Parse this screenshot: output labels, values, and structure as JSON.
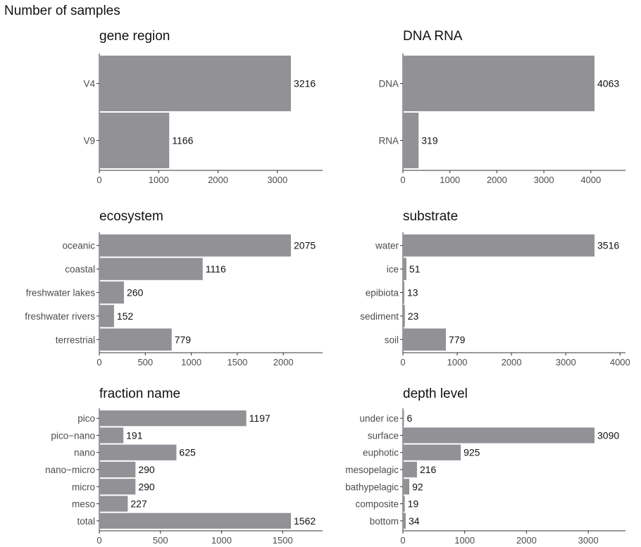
{
  "page_title": "Number of samples",
  "colors": {
    "bar": "#929296",
    "axis": "#333333",
    "label": "#4d4d4d",
    "text": "#111111"
  },
  "chart_data": [
    {
      "type": "bar",
      "orientation": "horizontal",
      "title": "gene region",
      "categories": [
        "V4",
        "V9"
      ],
      "values": [
        3216,
        1166
      ],
      "xticks": [
        0,
        1000,
        2000,
        3000
      ],
      "xlim": [
        0,
        3216
      ]
    },
    {
      "type": "bar",
      "orientation": "horizontal",
      "title": "DNA RNA",
      "categories": [
        "DNA",
        "RNA"
      ],
      "values": [
        4063,
        319
      ],
      "xticks": [
        0,
        1000,
        2000,
        3000,
        4000
      ],
      "xlim": [
        0,
        4063
      ]
    },
    {
      "type": "bar",
      "orientation": "horizontal",
      "title": "ecosystem",
      "categories": [
        "oceanic",
        "coastal",
        "freshwater lakes",
        "freshwater rivers",
        "terrestrial"
      ],
      "values": [
        2075,
        1116,
        260,
        152,
        779
      ],
      "xticks": [
        0,
        500,
        1000,
        1500,
        2000
      ],
      "xlim": [
        0,
        2075
      ]
    },
    {
      "type": "bar",
      "orientation": "horizontal",
      "title": "substrate",
      "categories": [
        "water",
        "ice",
        "epibiota",
        "sediment",
        "soil"
      ],
      "values": [
        3516,
        51,
        13,
        23,
        779
      ],
      "xticks": [
        0,
        1000,
        2000,
        3000,
        4000
      ],
      "xlim": [
        0,
        3516
      ]
    },
    {
      "type": "bar",
      "orientation": "horizontal",
      "title": "fraction name",
      "categories": [
        "pico",
        "pico−nano",
        "nano",
        "nano−micro",
        "micro",
        "meso",
        "total"
      ],
      "values": [
        1197,
        191,
        625,
        290,
        290,
        227,
        1562
      ],
      "xticks": [
        0,
        500,
        1000,
        1500
      ],
      "xlim": [
        0,
        1562
      ]
    },
    {
      "type": "bar",
      "orientation": "horizontal",
      "title": "depth level",
      "categories": [
        "under ice",
        "surface",
        "euphotic",
        "mesopelagic",
        "bathypelagic",
        "composite",
        "bottom"
      ],
      "values": [
        6,
        3090,
        925,
        216,
        92,
        19,
        34
      ],
      "xticks": [
        0,
        1000,
        2000,
        3000
      ],
      "xlim": [
        0,
        3090
      ]
    }
  ]
}
